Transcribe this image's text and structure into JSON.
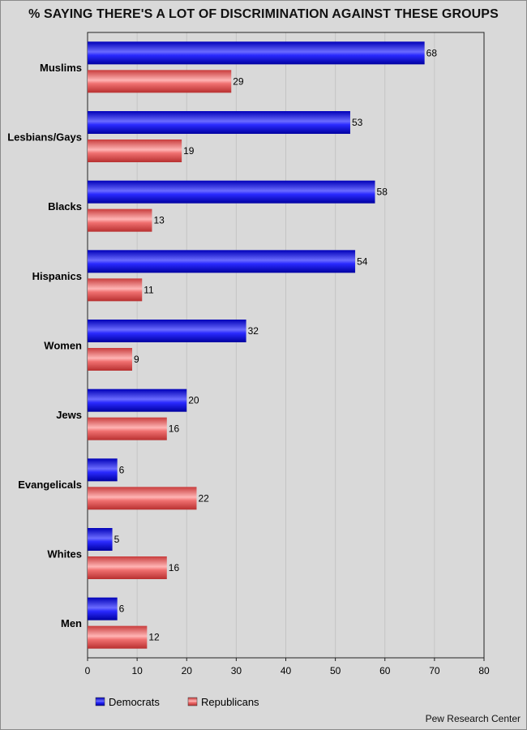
{
  "chart_data": {
    "type": "bar",
    "orientation": "horizontal",
    "title": "% SAYING THERE'S A LOT OF DISCRIMINATION AGAINST THESE GROUPS",
    "categories": [
      "Muslims",
      "Lesbians/Gays",
      "Blacks",
      "Hispanics",
      "Women",
      "Jews",
      "Evangelicals",
      "Whites",
      "Men"
    ],
    "series": [
      {
        "name": "Democrats",
        "color": "#1a1ae6",
        "values": [
          68,
          53,
          58,
          54,
          32,
          20,
          6,
          5,
          6
        ]
      },
      {
        "name": "Republicans",
        "color": "#e65555",
        "values": [
          29,
          19,
          13,
          11,
          9,
          16,
          22,
          16,
          12
        ]
      }
    ],
    "xlim": [
      0,
      80
    ],
    "xticks": [
      0,
      10,
      20,
      30,
      40,
      50,
      60,
      70,
      80
    ],
    "grid": "vertical",
    "legend_position": "bottom-left",
    "source": "Pew Research Center"
  }
}
